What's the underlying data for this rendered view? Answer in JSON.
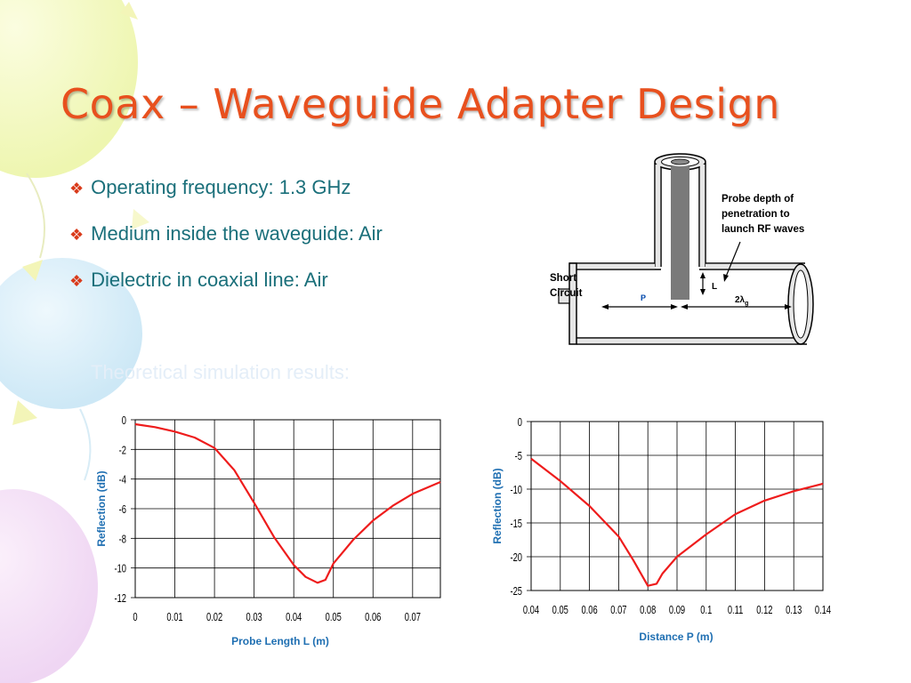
{
  "slide": {
    "title": "Coax – Waveguide Adapter Design",
    "bullets": [
      "Operating frequency: 1.3 GHz",
      "Medium inside the waveguide: Air",
      "Dielectric in coaxial line: Air"
    ],
    "subheading": "Theoretical simulation results:"
  },
  "diagram": {
    "probe_note": [
      "Probe depth of",
      "penetration to",
      "launch RF waves"
    ],
    "short_circuit": [
      "Short",
      "Circuit"
    ],
    "label_L": "L",
    "label_P": "P",
    "label_2lambda": "2λ",
    "label_2lambda_sub": "g"
  },
  "colors": {
    "title": "#e8501e",
    "text": "#1a6f7a",
    "axis_label": "#1f6fb2",
    "curve": "#ee1c1c"
  },
  "chart_data": [
    {
      "type": "line",
      "xlabel": "Probe Length L (m)",
      "ylabel": "Reflection (dB)",
      "xlim": [
        0,
        0.077
      ],
      "ylim": [
        -12,
        0
      ],
      "xticks": [
        0,
        0.01,
        0.02,
        0.03,
        0.04,
        0.05,
        0.06,
        0.07
      ],
      "xtick_labels": [
        "0",
        "0.01",
        "0.02",
        "0.03",
        "0.04",
        "0.05",
        "0.06",
        "0.07"
      ],
      "yticks": [
        0,
        -2,
        -4,
        -6,
        -8,
        -10,
        -12
      ],
      "ytick_labels": [
        "0",
        "-2",
        "-4",
        "-6",
        "-8",
        "-10",
        "-12"
      ],
      "grid": true,
      "series": [
        {
          "x": [
            0,
            0.005,
            0.01,
            0.015,
            0.02,
            0.025,
            0.03,
            0.035,
            0.04,
            0.043,
            0.046,
            0.048,
            0.05,
            0.055,
            0.06,
            0.065,
            0.07,
            0.077
          ],
          "y": [
            -0.3,
            -0.5,
            -0.8,
            -1.2,
            -1.9,
            -3.4,
            -5.6,
            -7.9,
            -9.8,
            -10.6,
            -11.0,
            -10.8,
            -9.7,
            -8.1,
            -6.8,
            -5.8,
            -5.0,
            -4.2
          ]
        }
      ]
    },
    {
      "type": "line",
      "xlabel": "Distance P (m)",
      "ylabel": "Reflection (dB)",
      "xlim": [
        0.04,
        0.14
      ],
      "ylim": [
        -25,
        0
      ],
      "xticks": [
        0.04,
        0.05,
        0.06,
        0.07,
        0.08,
        0.09,
        0.1,
        0.11,
        0.12,
        0.13,
        0.14
      ],
      "xtick_labels": [
        "0.04",
        "0.05",
        "0.06",
        "0.07",
        "0.08",
        "0.09",
        "0.1",
        "0.11",
        "0.12",
        "0.13",
        "0.14"
      ],
      "yticks": [
        0,
        -5,
        -10,
        -15,
        -20,
        -25
      ],
      "ytick_labels": [
        "0",
        "-5",
        "-10",
        "-15",
        "-20",
        "-25"
      ],
      "grid": true,
      "series": [
        {
          "x": [
            0.04,
            0.05,
            0.06,
            0.07,
            0.075,
            0.08,
            0.083,
            0.085,
            0.09,
            0.1,
            0.11,
            0.12,
            0.13,
            0.14
          ],
          "y": [
            -5.5,
            -8.8,
            -12.5,
            -17.0,
            -20.5,
            -24.3,
            -24.0,
            -22.5,
            -20.0,
            -16.7,
            -13.7,
            -11.7,
            -10.3,
            -9.2
          ]
        }
      ]
    }
  ]
}
